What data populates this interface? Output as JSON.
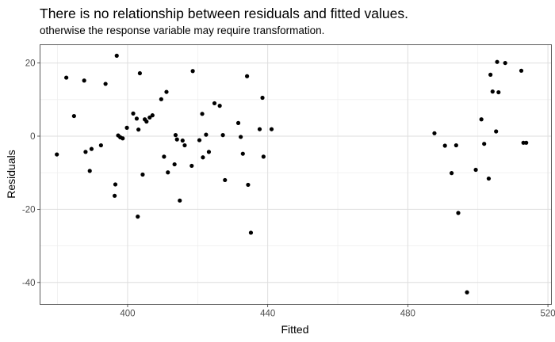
{
  "chart_data": {
    "type": "scatter",
    "title": "There is no relationship between residuals and fitted values.",
    "subtitle": "otherwise the response variable may require transformation.",
    "xlabel": "Fitted",
    "ylabel": "Residuals",
    "xlim": [
      375,
      521
    ],
    "ylim": [
      -46,
      25
    ],
    "x_ticks": [
      400,
      440,
      480,
      520
    ],
    "x_tick_labels": [
      "400",
      "440",
      "480",
      "520"
    ],
    "x_minor_ticks": [
      380,
      420,
      460,
      500
    ],
    "y_ticks": [
      -40,
      -20,
      0,
      20
    ],
    "y_tick_labels": [
      "-40",
      "-20",
      "0",
      "20"
    ],
    "y_minor_ticks": [
      -30,
      -10,
      10
    ],
    "grid": true,
    "theme": "light",
    "point_color": "#000000",
    "x": [
      379.8,
      382.5,
      384.7,
      387.6,
      388.0,
      389.2,
      389.7,
      392.4,
      393.7,
      396.3,
      396.5,
      396.9,
      397.3,
      397.9,
      398.6,
      399.8,
      401.6,
      402.6,
      402.9,
      403.1,
      403.5,
      404.3,
      404.9,
      405.4,
      406.3,
      407.1,
      409.6,
      410.4,
      411.1,
      411.5,
      413.4,
      413.7,
      414.1,
      414.9,
      415.7,
      416.3,
      418.3,
      418.6,
      420.5,
      421.3,
      421.5,
      422.4,
      423.2,
      424.8,
      426.3,
      427.2,
      427.8,
      431.6,
      432.3,
      432.9,
      434.1,
      434.4,
      435.2,
      437.7,
      438.5,
      438.8,
      441.1,
      487.6,
      490.6,
      492.5,
      493.8,
      494.4,
      496.9,
      499.4,
      501.0,
      501.8,
      503.1,
      503.6,
      504.2,
      505.2,
      505.5,
      505.9,
      507.8,
      512.4,
      513.0,
      513.8
    ],
    "y": [
      -5.0,
      16.0,
      5.5,
      15.2,
      -4.3,
      -9.5,
      -3.5,
      -2.5,
      14.3,
      -16.3,
      -13.2,
      22.0,
      0.2,
      -0.3,
      -0.6,
      2.3,
      6.2,
      4.8,
      -22.0,
      1.8,
      17.2,
      -10.5,
      4.6,
      4.0,
      5.1,
      5.7,
      10.1,
      -5.6,
      12.1,
      -9.9,
      -7.7,
      0.3,
      -0.9,
      -17.6,
      -1.2,
      -2.5,
      -8.1,
      17.8,
      -1.1,
      6.1,
      -5.8,
      0.4,
      -4.3,
      9.0,
      8.3,
      0.3,
      -12.0,
      3.6,
      -0.2,
      -4.8,
      16.4,
      -13.3,
      -26.4,
      1.9,
      10.5,
      -5.6,
      1.9,
      0.8,
      -2.6,
      -10.1,
      -2.5,
      -21.0,
      -42.7,
      -9.2,
      4.6,
      -2.1,
      -11.6,
      16.8,
      12.2,
      1.3,
      20.3,
      12.0,
      20.0,
      17.9,
      -1.8,
      -1.8
    ]
  }
}
